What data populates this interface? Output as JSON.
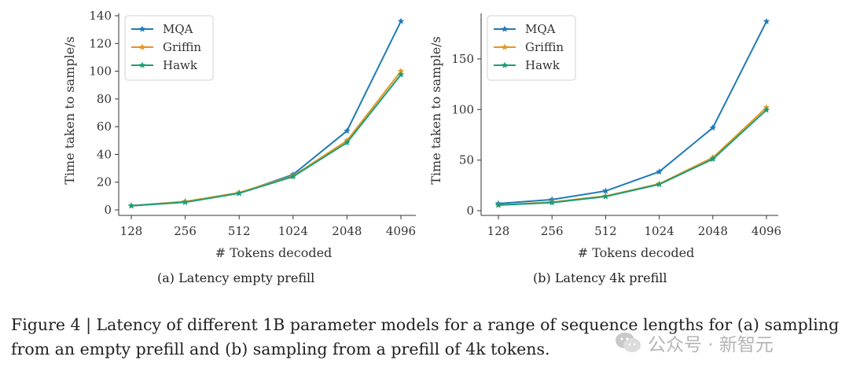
{
  "chart_data": [
    {
      "type": "line",
      "id": "a",
      "subcaption": "(a)  Latency empty prefill",
      "xlabel": "# Tokens decoded",
      "ylabel": "Time taken to sample/s",
      "categories": [
        "128",
        "256",
        "512",
        "1024",
        "2048",
        "4096"
      ],
      "ylim": [
        -2,
        140
      ],
      "yticks": [
        0,
        20,
        40,
        60,
        80,
        100,
        120,
        140
      ],
      "legend_position": "top-left",
      "series": [
        {
          "name": "MQA",
          "color": "#1f7bb4",
          "values": [
            3,
            6,
            12,
            25.5,
            57,
            136
          ]
        },
        {
          "name": "Griffin",
          "color": "#e7961e",
          "values": [
            3,
            6,
            12.5,
            24.5,
            50,
            100
          ]
        },
        {
          "name": "Hawk",
          "color": "#1a9e77",
          "values": [
            3,
            5.5,
            12,
            24,
            48.5,
            97.5
          ]
        }
      ]
    },
    {
      "type": "line",
      "id": "b",
      "subcaption": "(b)  Latency 4k prefill",
      "xlabel": "# Tokens decoded",
      "ylabel": "Time taken to sample/s",
      "categories": [
        "128",
        "256",
        "512",
        "1024",
        "2048",
        "4096"
      ],
      "ylim": [
        -2,
        195
      ],
      "yticks": [
        0,
        50,
        100,
        150
      ],
      "legend_position": "top-left",
      "series": [
        {
          "name": "MQA",
          "color": "#1f7bb4",
          "values": [
            7,
            11,
            19.5,
            38.5,
            82,
            187
          ]
        },
        {
          "name": "Griffin",
          "color": "#e7961e",
          "values": [
            5.5,
            8.5,
            14.5,
            26.5,
            52.5,
            102
          ]
        },
        {
          "name": "Hawk",
          "color": "#1a9e77",
          "values": [
            5.5,
            8,
            14,
            26,
            51,
            99.5
          ]
        }
      ]
    }
  ],
  "caption": "Figure 4 | Latency of different 1B parameter models for a range of sequence lengths for (a) sampling from an empty prefill and (b) sampling from a prefill of 4k tokens.",
  "watermark": "公众号 · 新智元"
}
